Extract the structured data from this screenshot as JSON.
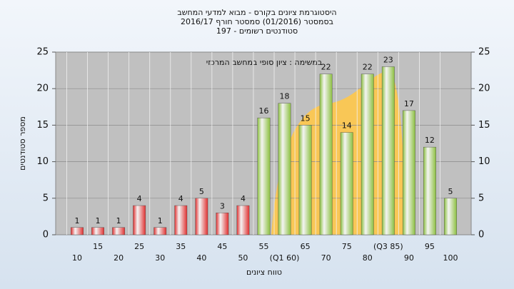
{
  "chart_data": {
    "type": "bar",
    "title": "היסטוגרמת ציונים בקורס - מבוא למדעי המחשב",
    "subtitle": "בסמסטר  (01/2016)  סמסטר חורף 2016/17",
    "subtitle2": "סטודנטים רשומים - 197",
    "annotation": "במשימה : ציון סופי במחשב המרכזי",
    "y_label": "מספר סטודנטים",
    "x_label": "טווח ציונים",
    "categories": [
      "10",
      "15",
      "20",
      "25",
      "30",
      "35",
      "40",
      "45",
      "50",
      "55",
      "(Q1 60)",
      "65",
      "70",
      "75",
      "80",
      "(Q3 85)",
      "90",
      "95",
      "100"
    ],
    "values": [
      1,
      1,
      1,
      4,
      1,
      4,
      5,
      3,
      4,
      16,
      18,
      15,
      22,
      14,
      22,
      23,
      17,
      12,
      5
    ],
    "colors": [
      "#e03030",
      "#e03030",
      "#e03030",
      "#e03030",
      "#e03030",
      "#e03030",
      "#e03030",
      "#e03030",
      "#e03030",
      "#8cc040",
      "#8cc040",
      "#8cc040",
      "#8cc040",
      "#8cc040",
      "#8cc040",
      "#8cc040",
      "#8cc040",
      "#8cc040",
      "#8cc040"
    ],
    "ylim": [
      0,
      25
    ],
    "yticks": [
      0,
      5,
      10,
      15,
      20,
      25
    ],
    "y2lim": [
      0,
      25
    ],
    "y2ticks": [
      0,
      5,
      10,
      15,
      20,
      25
    ],
    "grid": true
  }
}
